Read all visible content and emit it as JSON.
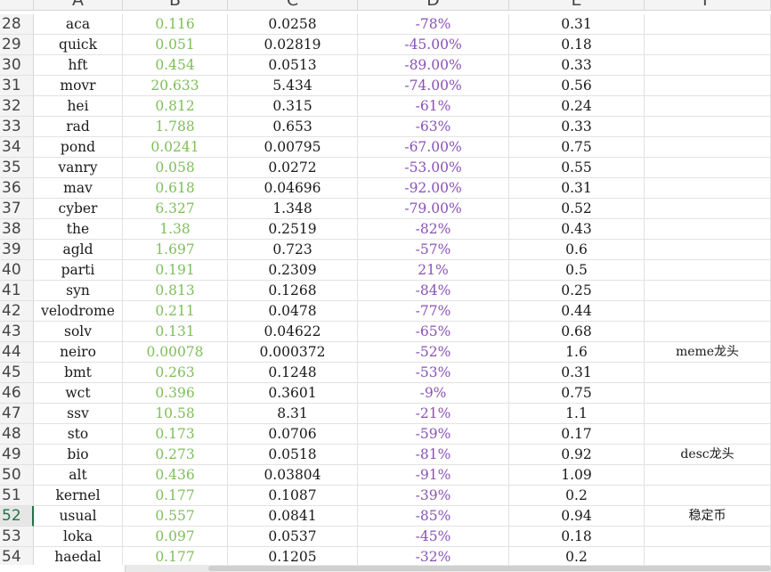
{
  "columns": [
    "A",
    "B",
    "C",
    "D",
    "E",
    "F"
  ],
  "rows": [
    {
      "num": "28",
      "a": "aca",
      "b": "0.116",
      "c": "0.0258",
      "d": "-78%",
      "e": "0.31",
      "f": ""
    },
    {
      "num": "29",
      "a": "quick",
      "b": "0.051",
      "c": "0.02819",
      "d": "-45.00%",
      "e": "0.18",
      "f": ""
    },
    {
      "num": "30",
      "a": "hft",
      "b": "0.454",
      "c": "0.0513",
      "d": "-89.00%",
      "e": "0.33",
      "f": ""
    },
    {
      "num": "31",
      "a": "movr",
      "b": "20.633",
      "c": "5.434",
      "d": "-74.00%",
      "e": "0.56",
      "f": ""
    },
    {
      "num": "32",
      "a": "hei",
      "b": "0.812",
      "c": "0.315",
      "d": "-61%",
      "e": "0.24",
      "f": ""
    },
    {
      "num": "33",
      "a": "rad",
      "b": "1.788",
      "c": "0.653",
      "d": "-63%",
      "e": "0.33",
      "f": ""
    },
    {
      "num": "34",
      "a": "pond",
      "b": "0.0241",
      "c": "0.00795",
      "d": "-67.00%",
      "e": "0.75",
      "f": ""
    },
    {
      "num": "35",
      "a": "vanry",
      "b": "0.058",
      "c": "0.0272",
      "d": "-53.00%",
      "e": "0.55",
      "f": ""
    },
    {
      "num": "36",
      "a": "mav",
      "b": "0.618",
      "c": "0.04696",
      "d": "-92.00%",
      "e": "0.31",
      "f": ""
    },
    {
      "num": "37",
      "a": "cyber",
      "b": "6.327",
      "c": "1.348",
      "d": "-79.00%",
      "e": "0.52",
      "f": ""
    },
    {
      "num": "38",
      "a": "the",
      "b": "1.38",
      "c": "0.2519",
      "d": "-82%",
      "e": "0.43",
      "f": ""
    },
    {
      "num": "39",
      "a": "agld",
      "b": "1.697",
      "c": "0.723",
      "d": "-57%",
      "e": "0.6",
      "f": ""
    },
    {
      "num": "40",
      "a": "parti",
      "b": "0.191",
      "c": "0.2309",
      "d": "21%",
      "e": "0.5",
      "f": ""
    },
    {
      "num": "41",
      "a": "syn",
      "b": "0.813",
      "c": "0.1268",
      "d": "-84%",
      "e": "0.25",
      "f": ""
    },
    {
      "num": "42",
      "a": "velodrome",
      "b": "0.211",
      "c": "0.0478",
      "d": "-77%",
      "e": "0.44",
      "f": ""
    },
    {
      "num": "43",
      "a": "solv",
      "b": "0.131",
      "c": "0.04622",
      "d": "-65%",
      "e": "0.68",
      "f": ""
    },
    {
      "num": "44",
      "a": "neiro",
      "b": "0.00078",
      "c": "0.000372",
      "d": "-52%",
      "e": "1.6",
      "f": "meme龙头"
    },
    {
      "num": "45",
      "a": "bmt",
      "b": "0.263",
      "c": "0.1248",
      "d": "-53%",
      "e": "0.31",
      "f": ""
    },
    {
      "num": "46",
      "a": "wct",
      "b": "0.396",
      "c": "0.3601",
      "d": "-9%",
      "e": "0.75",
      "f": ""
    },
    {
      "num": "47",
      "a": "ssv",
      "b": "10.58",
      "c": "8.31",
      "d": "-21%",
      "e": "1.1",
      "f": ""
    },
    {
      "num": "48",
      "a": "sto",
      "b": "0.173",
      "c": "0.0706",
      "d": "-59%",
      "e": "0.17",
      "f": ""
    },
    {
      "num": "49",
      "a": "bio",
      "b": "0.273",
      "c": "0.0518",
      "d": "-81%",
      "e": "0.92",
      "f": "desc龙头"
    },
    {
      "num": "50",
      "a": "alt",
      "b": "0.436",
      "c": "0.03804",
      "d": "-91%",
      "e": "1.09",
      "f": ""
    },
    {
      "num": "51",
      "a": "kernel",
      "b": "0.177",
      "c": "0.1087",
      "d": "-39%",
      "e": "0.2",
      "f": ""
    },
    {
      "num": "52",
      "a": "usual",
      "b": "0.557",
      "c": "0.0841",
      "d": "-85%",
      "e": "0.94",
      "f": "稳定币"
    },
    {
      "num": "53",
      "a": "loka",
      "b": "0.097",
      "c": "0.0537",
      "d": "-45%",
      "e": "0.18",
      "f": ""
    },
    {
      "num": "54",
      "a": "haedal",
      "b": "0.177",
      "c": "0.1205",
      "d": "-32%",
      "e": "0.2",
      "f": ""
    }
  ],
  "active_row": "52",
  "colors": {
    "col_b_text": "#7dbf5a",
    "col_d_text": "#8a52b8",
    "active_accent": "#217346"
  }
}
